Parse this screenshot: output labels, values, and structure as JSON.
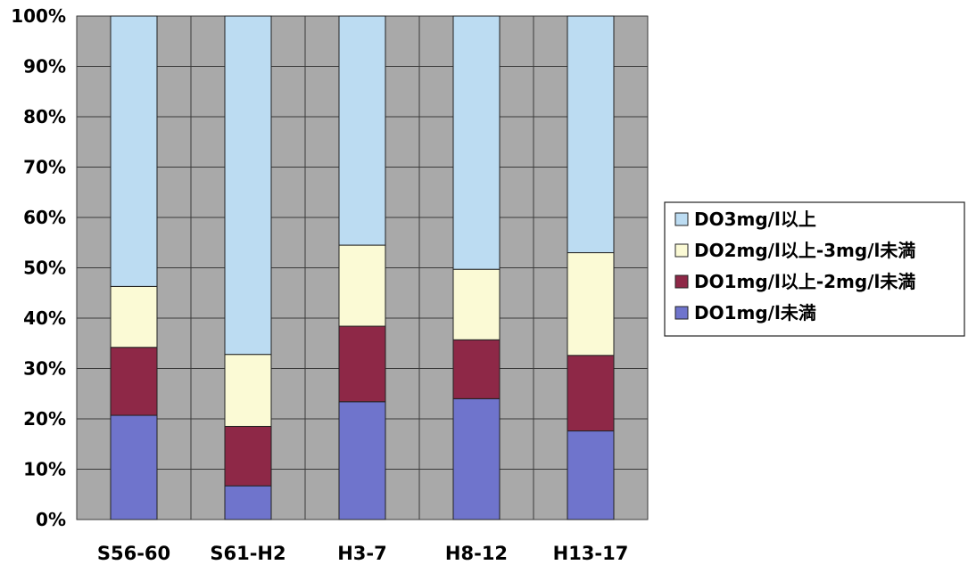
{
  "chart_data": {
    "type": "bar",
    "stacked": true,
    "percent": true,
    "categories": [
      "S56-60",
      "S61-H2",
      "H3-7",
      "H8-12",
      "H13-17"
    ],
    "ylim": [
      0,
      100
    ],
    "yticks": [
      "0%",
      "10%",
      "20%",
      "30%",
      "40%",
      "50%",
      "60%",
      "70%",
      "80%",
      "90%",
      "100%"
    ],
    "grid": true,
    "legend_position": "right",
    "series": [
      {
        "name": "DO1mg/l未満",
        "color": "#6f74cc",
        "values": [
          20.7,
          6.7,
          23.4,
          24.0,
          17.6
        ]
      },
      {
        "name": "DO1mg/l以上-2mg/l未満",
        "color": "#8e2847",
        "values": [
          13.5,
          11.8,
          15.0,
          11.7,
          15.0
        ]
      },
      {
        "name": "DO2mg/l以上-3mg/l未満",
        "color": "#fbfad5",
        "values": [
          12.1,
          14.3,
          16.1,
          14.0,
          20.4
        ]
      },
      {
        "name": "DO3mg/l以上",
        "color": "#bcdcf2",
        "values": [
          53.7,
          67.2,
          45.5,
          50.3,
          47.0
        ]
      }
    ],
    "legend_order": [
      "DO3mg/l以上",
      "DO2mg/l以上-3mg/l未満",
      "DO1mg/l以上-2mg/l未満",
      "DO1mg/l未満"
    ]
  }
}
